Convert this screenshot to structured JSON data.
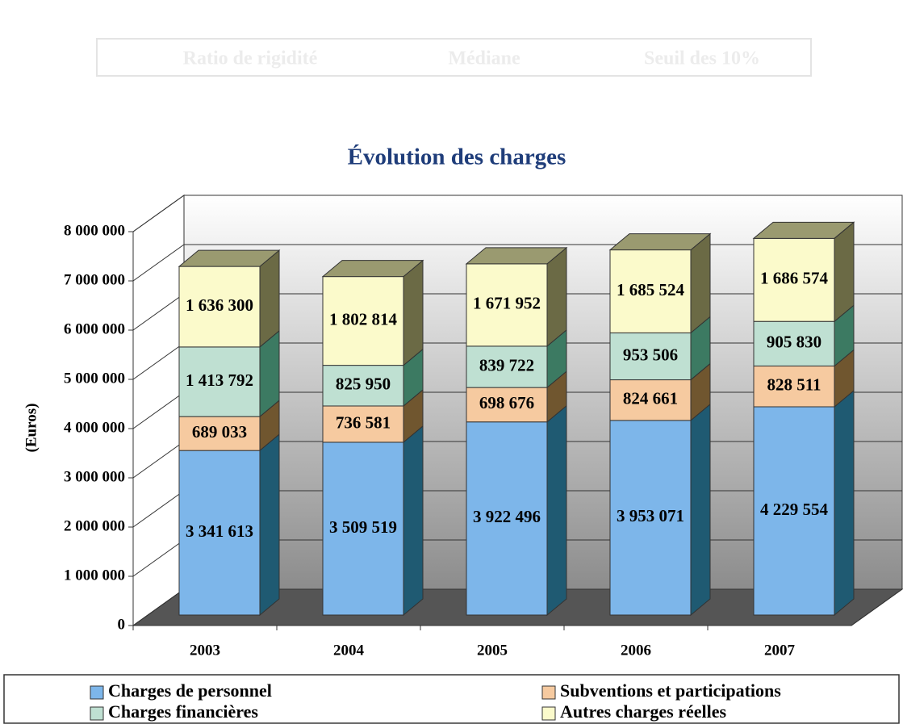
{
  "chart_data": {
    "type": "bar3d_stacked",
    "faded_texts": [
      "Ratio de rigidité",
      "Médiane",
      "Seuil des 10%"
    ],
    "title": "Évolution des charges",
    "y_label": "(Euros)",
    "categories": [
      "2003",
      "2004",
      "2005",
      "2006",
      "2007"
    ],
    "ylim": [
      0,
      8000000
    ],
    "yticks": [
      0,
      {
        "value": 1000000,
        "label": "1 000 000"
      },
      {
        "value": 2000000,
        "label": "2 000 000"
      },
      {
        "value": 3000000,
        "label": "3 000 000"
      },
      {
        "value": 4000000,
        "label": "4 000 000"
      },
      {
        "value": 5000000,
        "label": "5 000 000"
      },
      {
        "value": 6000000,
        "label": "6 000 000"
      },
      {
        "value": 7000000,
        "label": "7 000 000"
      },
      {
        "value": 8000000,
        "label": "8 000 000"
      }
    ],
    "grid": true,
    "series": [
      {
        "name": "Charges de personnel",
        "color": "#7db6ea",
        "side": "#1f5a72",
        "values": [
          3341613,
          3509519,
          3922496,
          3953071,
          4229554
        ],
        "value_labels": [
          "3 341 613",
          "3 509 519",
          "3 922 496",
          "3 953 071",
          "4 229 554"
        ]
      },
      {
        "name": "Subventions et participations",
        "color": "#f6caa0",
        "side": "#70562f",
        "values": [
          689033,
          736581,
          698676,
          824661,
          828511
        ],
        "value_labels": [
          "689 033",
          "736 581",
          "698 676",
          "824 661",
          "828 511"
        ]
      },
      {
        "name": "Charges financières",
        "color": "#bfe0d2",
        "side": "#3c7a62",
        "values": [
          1413792,
          825950,
          839722,
          953506,
          905830
        ],
        "value_labels": [
          "1 413 792",
          "825 950",
          "839 722",
          "953 506",
          "905 830"
        ]
      },
      {
        "name": "Autres charges réelles",
        "color": "#fbfacb",
        "side": "#6b6a45",
        "values": [
          1636300,
          1802814,
          1671952,
          1685524,
          1686574
        ],
        "value_labels": [
          "1 636 300",
          "1 802 814",
          "1 671 952",
          "1 685 524",
          "1 686 574"
        ]
      }
    ]
  }
}
